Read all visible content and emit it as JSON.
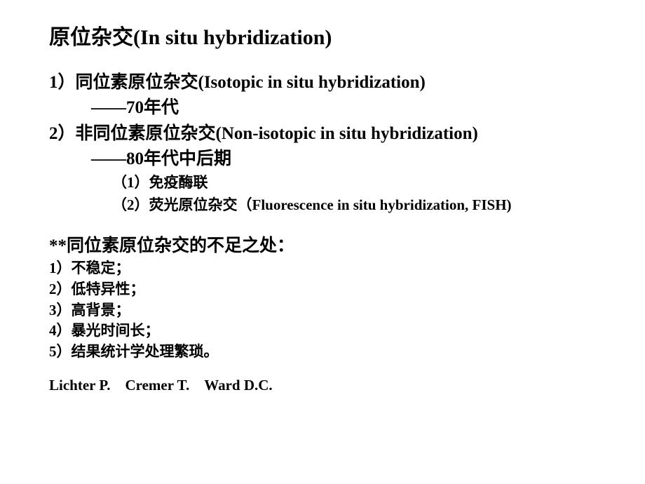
{
  "title": "原位杂交(In situ hybridization)",
  "item1": {
    "line1": "1）同位素原位杂交(Isotopic in situ hybridization)",
    "line2": "——70年代"
  },
  "item2": {
    "line1": "2）非同位素原位杂交(Non-isotopic in situ hybridization)",
    "line2": "——80年代中后期",
    "sub1": "（1）免疫酶联",
    "sub2": "（2）荧光原位杂交（Fluorescence in situ hybridization, FISH)"
  },
  "drawbacks": {
    "header": "**同位素原位杂交的不足之处：",
    "d1": "1）不稳定；",
    "d2": "2）低特异性；",
    "d3": "3）高背景；",
    "d4": "4）暴光时间长；",
    "d5": "5）结果统计学处理繁琐。"
  },
  "authors": "Lichter P. Cremer T. Ward D.C."
}
